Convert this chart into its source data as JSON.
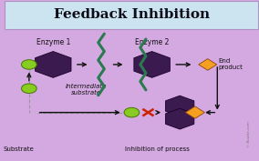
{
  "title": "Feedback Inhibition",
  "title_bg": "#cce4f0",
  "title_color": "#0d0d1a",
  "main_bg": "#d4a8e0",
  "enzyme1_label": "Enzyme 1",
  "enzyme2_label": "Enzyme 2",
  "intermediate_label": "Intermediate\nsubstrate",
  "substrate_label": "Substrate",
  "inhibition_label": "Inhibition of process",
  "end_product_label": "End\nproduct",
  "enzyme_color": "#3b1a50",
  "zigzag_color": "#2a7a50",
  "circle_color": "#88cc22",
  "orange_color": "#f5a020",
  "arrow_color": "#111111",
  "dashed_color": "#999999",
  "red_color": "#cc2200"
}
